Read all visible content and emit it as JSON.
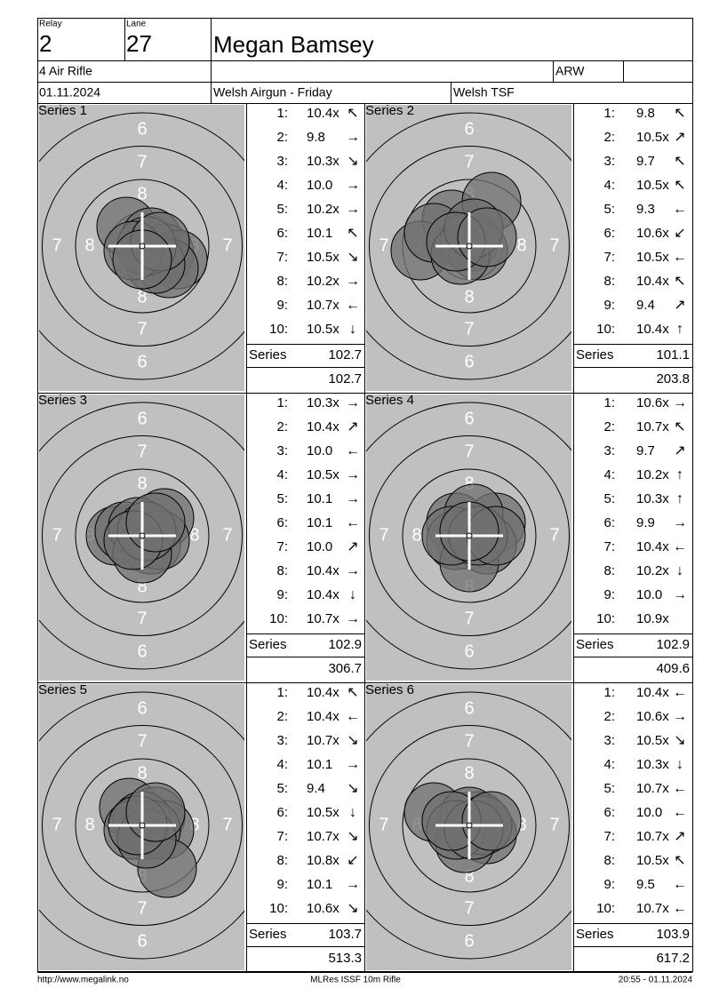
{
  "header": {
    "relay_label": "Relay",
    "relay": "2",
    "lane_label": "Lane",
    "lane": "27",
    "name": "Megan Bamsey",
    "event": "4 Air Rifle",
    "class": "ARW",
    "date": "01.11.2024",
    "competition": "Welsh Airgun - Friday",
    "club": "Welsh TSF"
  },
  "target_labels": {
    "top": [
      "6",
      "7",
      "8"
    ],
    "side": [
      "7",
      "8"
    ]
  },
  "series": [
    {
      "title": "Series 1",
      "shots": [
        {
          "n": "1:",
          "score": "10.4x",
          "dir": "↖"
        },
        {
          "n": "2:",
          "score": "9.8",
          "dir": "→"
        },
        {
          "n": "3:",
          "score": "10.3x",
          "dir": "↘"
        },
        {
          "n": "4:",
          "score": "10.0",
          "dir": "→"
        },
        {
          "n": "5:",
          "score": "10.2x",
          "dir": "→"
        },
        {
          "n": "6:",
          "score": "10.1",
          "dir": "↖"
        },
        {
          "n": "7:",
          "score": "10.5x",
          "dir": "↘"
        },
        {
          "n": "8:",
          "score": "10.2x",
          "dir": "→"
        },
        {
          "n": "9:",
          "score": "10.7x",
          "dir": "←"
        },
        {
          "n": "10:",
          "score": "10.5x",
          "dir": "↓"
        }
      ],
      "total_label": "Series",
      "total": 102.7,
      "cumulative": 102.7
    },
    {
      "title": "Series 2",
      "shots": [
        {
          "n": "1:",
          "score": "9.8",
          "dir": "↖"
        },
        {
          "n": "2:",
          "score": "10.5x",
          "dir": "↗"
        },
        {
          "n": "3:",
          "score": "9.7",
          "dir": "↖"
        },
        {
          "n": "4:",
          "score": "10.5x",
          "dir": "↖"
        },
        {
          "n": "5:",
          "score": "9.3",
          "dir": "←"
        },
        {
          "n": "6:",
          "score": "10.6x",
          "dir": "↙"
        },
        {
          "n": "7:",
          "score": "10.5x",
          "dir": "←"
        },
        {
          "n": "8:",
          "score": "10.4x",
          "dir": "↖"
        },
        {
          "n": "9:",
          "score": "9.4",
          "dir": "↗"
        },
        {
          "n": "10:",
          "score": "10.4x",
          "dir": "↑"
        }
      ],
      "total_label": "Series",
      "total": 101.1,
      "cumulative": 203.8
    },
    {
      "title": "Series 3",
      "shots": [
        {
          "n": "1:",
          "score": "10.3x",
          "dir": "→"
        },
        {
          "n": "2:",
          "score": "10.4x",
          "dir": "↗"
        },
        {
          "n": "3:",
          "score": "10.0",
          "dir": "←"
        },
        {
          "n": "4:",
          "score": "10.5x",
          "dir": "→"
        },
        {
          "n": "5:",
          "score": "10.1",
          "dir": "→"
        },
        {
          "n": "6:",
          "score": "10.1",
          "dir": "←"
        },
        {
          "n": "7:",
          "score": "10.0",
          "dir": "↗"
        },
        {
          "n": "8:",
          "score": "10.4x",
          "dir": "→"
        },
        {
          "n": "9:",
          "score": "10.4x",
          "dir": "↓"
        },
        {
          "n": "10:",
          "score": "10.7x",
          "dir": "→"
        }
      ],
      "total_label": "Series",
      "total": 102.9,
      "cumulative": 306.7
    },
    {
      "title": "Series 4",
      "shots": [
        {
          "n": "1:",
          "score": "10.6x",
          "dir": "→"
        },
        {
          "n": "2:",
          "score": "10.7x",
          "dir": "↖"
        },
        {
          "n": "3:",
          "score": "9.7",
          "dir": "↗"
        },
        {
          "n": "4:",
          "score": "10.2x",
          "dir": "↑"
        },
        {
          "n": "5:",
          "score": "10.3x",
          "dir": "↑"
        },
        {
          "n": "6:",
          "score": "9.9",
          "dir": "→"
        },
        {
          "n": "7:",
          "score": "10.4x",
          "dir": "←"
        },
        {
          "n": "8:",
          "score": "10.2x",
          "dir": "↓"
        },
        {
          "n": "9:",
          "score": "10.0",
          "dir": "→"
        },
        {
          "n": "10:",
          "score": "10.9x"
        }
      ],
      "total_label": "Series",
      "total": 102.9,
      "cumulative": 409.6
    },
    {
      "title": "Series 5",
      "shots": [
        {
          "n": "1:",
          "score": "10.4x",
          "dir": "↖"
        },
        {
          "n": "2:",
          "score": "10.4x",
          "dir": "←"
        },
        {
          "n": "3:",
          "score": "10.7x",
          "dir": "↘"
        },
        {
          "n": "4:",
          "score": "10.1",
          "dir": "→"
        },
        {
          "n": "5:",
          "score": "9.4",
          "dir": "↘"
        },
        {
          "n": "6:",
          "score": "10.5x",
          "dir": "↓"
        },
        {
          "n": "7:",
          "score": "10.7x",
          "dir": "↘"
        },
        {
          "n": "8:",
          "score": "10.8x",
          "dir": "↙"
        },
        {
          "n": "9:",
          "score": "10.1",
          "dir": "→"
        },
        {
          "n": "10:",
          "score": "10.6x",
          "dir": "↘"
        }
      ],
      "total_label": "Series",
      "total": 103.7,
      "cumulative": 513.3
    },
    {
      "title": "Series 6",
      "shots": [
        {
          "n": "1:",
          "score": "10.4x",
          "dir": "←"
        },
        {
          "n": "2:",
          "score": "10.6x",
          "dir": "→"
        },
        {
          "n": "3:",
          "score": "10.5x",
          "dir": "↘"
        },
        {
          "n": "4:",
          "score": "10.3x",
          "dir": "↓"
        },
        {
          "n": "5:",
          "score": "10.7x",
          "dir": "←"
        },
        {
          "n": "6:",
          "score": "10.0",
          "dir": "←"
        },
        {
          "n": "7:",
          "score": "10.7x",
          "dir": "↗"
        },
        {
          "n": "8:",
          "score": "10.5x",
          "dir": "↖"
        },
        {
          "n": "9:",
          "score": "9.5",
          "dir": "←"
        },
        {
          "n": "10:",
          "score": "10.7x",
          "dir": "←"
        }
      ],
      "total_label": "Series",
      "total": 103.9,
      "cumulative": 617.2
    }
  ],
  "footer": {
    "url": "http://www.megalink.no",
    "software": "MLRes ISSF 10m Rifle",
    "timestamp": "20:55 - 01.11.2024"
  }
}
